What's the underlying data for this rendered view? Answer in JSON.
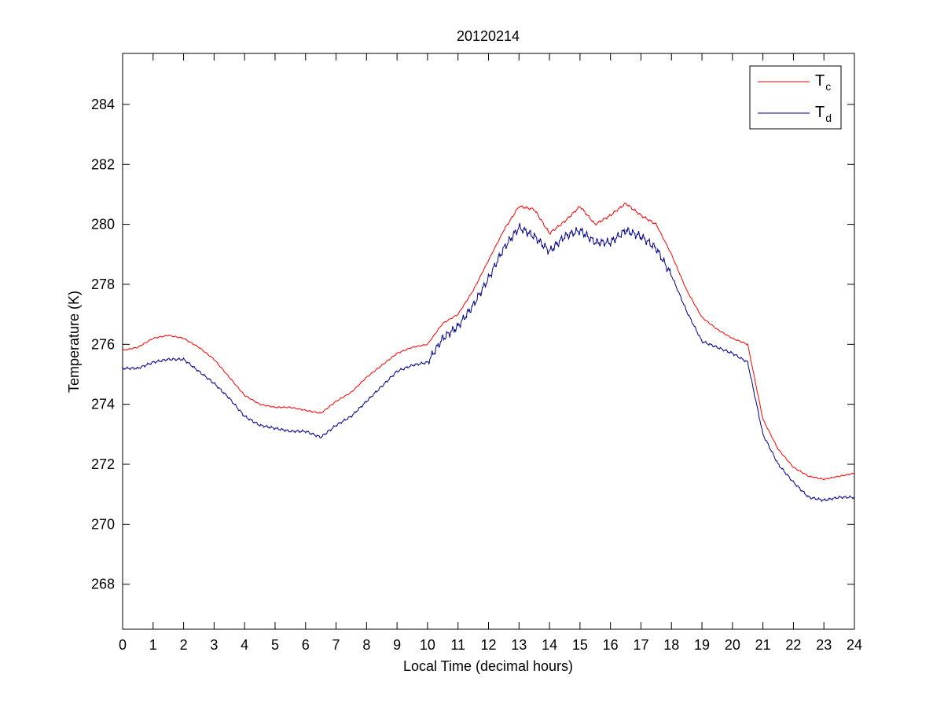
{
  "chart_data": {
    "type": "line",
    "title": "20120214",
    "xlabel": "Local Time (decimal hours)",
    "ylabel": "Temperature (K)",
    "xlim": [
      0,
      24
    ],
    "ylim": [
      266.5,
      285.7
    ],
    "xticks": [
      0,
      1,
      2,
      3,
      4,
      5,
      6,
      7,
      8,
      9,
      10,
      11,
      12,
      13,
      14,
      15,
      16,
      17,
      18,
      19,
      20,
      21,
      22,
      23,
      24
    ],
    "yticks": [
      268,
      270,
      272,
      274,
      276,
      278,
      280,
      282,
      284
    ],
    "grid": false,
    "legend": {
      "position": "top-right",
      "entries": [
        {
          "base": "T",
          "sub": "c",
          "color": "#ff0000"
        },
        {
          "base": "T",
          "sub": "d",
          "color": "#00008b"
        }
      ]
    },
    "series": [
      {
        "color": "#ff0000",
        "x": [
          0,
          0.5,
          1,
          1.5,
          2,
          2.5,
          3,
          3.5,
          4,
          4.5,
          5,
          5.5,
          6,
          6.5,
          7,
          7.5,
          8,
          8.5,
          9,
          9.5,
          10,
          10.5,
          11,
          11.5,
          12,
          12.5,
          13,
          13.5,
          14,
          14.5,
          15,
          15.5,
          16,
          16.5,
          17,
          17.5,
          18,
          18.5,
          19,
          19.5,
          20,
          20.5,
          21,
          21.5,
          22,
          22.5,
          23,
          23.5,
          24
        ],
        "y": [
          275.8,
          275.9,
          276.2,
          276.3,
          276.2,
          275.9,
          275.5,
          274.9,
          274.3,
          274.0,
          273.9,
          273.9,
          273.8,
          273.7,
          274.1,
          274.4,
          274.9,
          275.3,
          275.7,
          275.9,
          276.0,
          276.7,
          277.0,
          277.8,
          278.8,
          279.8,
          280.6,
          280.5,
          279.7,
          280.1,
          280.6,
          280.0,
          280.3,
          280.7,
          280.3,
          280.0,
          279.0,
          277.8,
          276.9,
          276.5,
          276.2,
          276.0,
          273.5,
          272.5,
          271.9,
          271.6,
          271.5,
          271.6,
          271.7
        ]
      },
      {
        "color": "#00008b",
        "x": [
          0,
          0.5,
          1,
          1.5,
          2,
          2.5,
          3,
          3.5,
          4,
          4.5,
          5,
          5.5,
          6,
          6.5,
          7,
          7.5,
          8,
          8.5,
          9,
          9.5,
          10,
          10.5,
          11,
          11.5,
          12,
          12.5,
          13,
          13.5,
          14,
          14.5,
          15,
          15.5,
          16,
          16.5,
          17,
          17.5,
          18,
          18.5,
          19,
          19.5,
          20,
          20.5,
          21,
          21.5,
          22,
          22.5,
          23,
          23.5,
          24
        ],
        "y": [
          275.2,
          275.2,
          275.4,
          275.5,
          275.5,
          275.1,
          274.7,
          274.2,
          273.6,
          273.3,
          273.2,
          273.1,
          273.1,
          272.9,
          273.3,
          273.6,
          274.1,
          274.6,
          275.1,
          275.3,
          275.4,
          276.2,
          276.6,
          277.3,
          278.2,
          279.2,
          279.9,
          279.6,
          279.1,
          279.6,
          279.8,
          279.4,
          279.4,
          279.8,
          279.6,
          279.2,
          278.3,
          277.1,
          276.1,
          275.9,
          275.7,
          275.4,
          273.0,
          272.0,
          271.4,
          270.9,
          270.8,
          270.9,
          270.9
        ]
      }
    ]
  }
}
